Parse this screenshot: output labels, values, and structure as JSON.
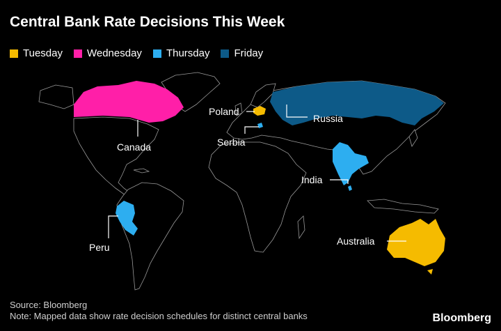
{
  "title": "Central Bank Rate Decisions This Week",
  "legend": [
    {
      "label": "Tuesday",
      "color": "#F5BB00"
    },
    {
      "label": "Wednesday",
      "color": "#FF1FA8"
    },
    {
      "label": "Thursday",
      "color": "#2DAEF0"
    },
    {
      "label": "Friday",
      "color": "#0D5A88"
    }
  ],
  "countries": {
    "canada": {
      "label": "Canada",
      "day": "Wednesday"
    },
    "poland": {
      "label": "Poland",
      "day": "Tuesday"
    },
    "serbia": {
      "label": "Serbia",
      "day": "Thursday"
    },
    "russia": {
      "label": "Russia",
      "day": "Friday"
    },
    "india": {
      "label": "India",
      "day": "Thursday"
    },
    "peru": {
      "label": "Peru",
      "day": "Thursday"
    },
    "australia": {
      "label": "Australia",
      "day": "Tuesday"
    }
  },
  "footer": {
    "source": "Source: Bloomberg",
    "note": "Note: Mapped data show rate decision schedules for distinct central banks",
    "brand": "Bloomberg"
  }
}
